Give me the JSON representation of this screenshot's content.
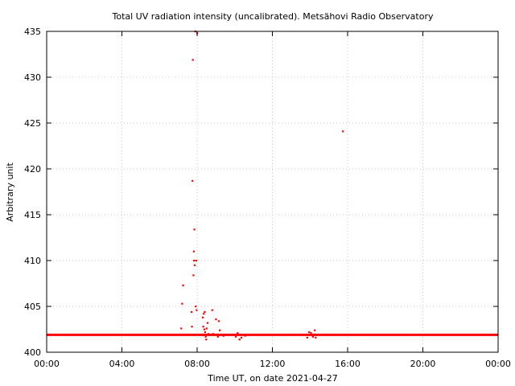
{
  "chart_data": {
    "type": "scatter",
    "title": "Total UV radiation intensity (uncalibrated). Metsähovi Radio Observatory",
    "xlabel": "Time UT, on date 2021-04-27",
    "ylabel": "Arbitrary unit",
    "xlim": [
      0,
      24
    ],
    "ylim": [
      400,
      435
    ],
    "grid": true,
    "point_color": "#ff0000",
    "x_ticks": [
      {
        "value": 0,
        "label": "00:00"
      },
      {
        "value": 4,
        "label": "04:00"
      },
      {
        "value": 8,
        "label": "08:00"
      },
      {
        "value": 12,
        "label": "12:00"
      },
      {
        "value": 16,
        "label": "16:00"
      },
      {
        "value": 20,
        "label": "20:00"
      },
      {
        "value": 24,
        "label": "00:00"
      }
    ],
    "y_ticks": [
      {
        "value": 400,
        "label": "400"
      },
      {
        "value": 405,
        "label": "405"
      },
      {
        "value": 410,
        "label": "410"
      },
      {
        "value": 415,
        "label": "415"
      },
      {
        "value": 420,
        "label": "420"
      },
      {
        "value": 425,
        "label": "425"
      },
      {
        "value": 430,
        "label": "430"
      },
      {
        "value": 435,
        "label": "435"
      }
    ],
    "baseline": {
      "y": 401.9,
      "x_start": 0,
      "x_end": 24
    },
    "points": [
      [
        7.15,
        402.6
      ],
      [
        7.2,
        405.3
      ],
      [
        7.25,
        407.3
      ],
      [
        7.7,
        404.4
      ],
      [
        7.72,
        402.8
      ],
      [
        7.75,
        418.7
      ],
      [
        7.77,
        431.9
      ],
      [
        7.8,
        408.4
      ],
      [
        7.82,
        411.0
      ],
      [
        7.83,
        410.0
      ],
      [
        7.85,
        413.4
      ],
      [
        7.87,
        409.5
      ],
      [
        7.9,
        435.0
      ],
      [
        7.92,
        405.0
      ],
      [
        7.95,
        410.0
      ],
      [
        7.97,
        404.6
      ],
      [
        8.0,
        434.8
      ],
      [
        8.3,
        403.8
      ],
      [
        8.32,
        402.8
      ],
      [
        8.35,
        404.2
      ],
      [
        8.38,
        402.5
      ],
      [
        8.4,
        404.4
      ],
      [
        8.42,
        402.2
      ],
      [
        8.45,
        401.7
      ],
      [
        8.48,
        401.4
      ],
      [
        8.5,
        402.6
      ],
      [
        8.55,
        403.2
      ],
      [
        8.6,
        402.0
      ],
      [
        8.8,
        404.6
      ],
      [
        8.85,
        402.0
      ],
      [
        9.0,
        403.6
      ],
      [
        9.1,
        401.7
      ],
      [
        9.15,
        403.4
      ],
      [
        9.2,
        402.4
      ],
      [
        9.4,
        401.8
      ],
      [
        10.05,
        401.7
      ],
      [
        10.15,
        402.1
      ],
      [
        10.25,
        401.4
      ],
      [
        10.35,
        401.6
      ],
      [
        10.55,
        401.8
      ],
      [
        13.85,
        401.6
      ],
      [
        13.95,
        402.2
      ],
      [
        14.05,
        402.1
      ],
      [
        14.15,
        401.7
      ],
      [
        14.25,
        402.4
      ],
      [
        14.3,
        401.6
      ],
      [
        15.75,
        424.1
      ]
    ]
  }
}
